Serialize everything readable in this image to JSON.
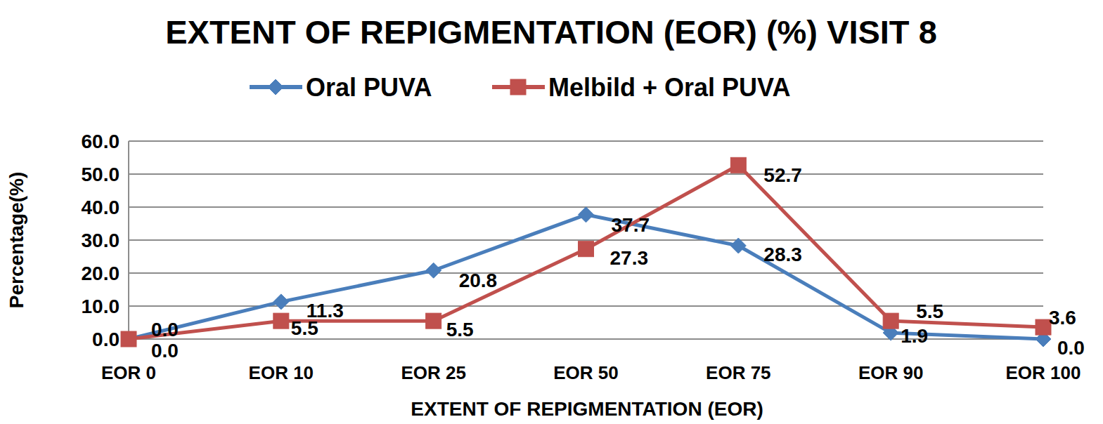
{
  "chart_data": {
    "type": "line",
    "title": "EXTENT OF REPIGMENTATION (EOR) (%) VISIT 8",
    "x_label": "EXTENT OF REPIGMENTATION (EOR)",
    "y_label": "Percentage(%)",
    "categories": [
      "EOR 0",
      "EOR 10",
      "EOR 25",
      "EOR 50",
      "EOR 75",
      "EOR 90",
      "EOR 100"
    ],
    "series": [
      {
        "name": "Oral PUVA",
        "color": "#4a7ebb",
        "marker": "diamond",
        "values": [
          0,
          11.3,
          20.8,
          37.7,
          28.3,
          1.9,
          0
        ],
        "value_labels": [
          "0.0",
          "11.3",
          "20.8",
          "37.7",
          "28.3",
          "1.9",
          "0.0"
        ]
      },
      {
        "name": "Melbild + Oral PUVA",
        "color": "#c0504d",
        "marker": "square",
        "values": [
          0,
          5.5,
          5.5,
          27.3,
          52.7,
          5.5,
          3.6
        ],
        "value_labels": [
          "0.0",
          "5.5",
          "5.5",
          "27.3",
          "52.7",
          "5.5",
          "3.6"
        ]
      }
    ],
    "ylim": [
      0,
      60
    ],
    "yticks": [
      {
        "value": 0,
        "label": "0.0"
      },
      {
        "value": 10,
        "label": "10.0"
      },
      {
        "value": 20,
        "label": "20.0"
      },
      {
        "value": 30,
        "label": "30.0"
      },
      {
        "value": 40,
        "label": "40.0"
      },
      {
        "value": 50,
        "label": "50.0"
      },
      {
        "value": 60,
        "label": "60.0"
      }
    ],
    "grid": true,
    "legend": "top",
    "data_labels": true
  }
}
